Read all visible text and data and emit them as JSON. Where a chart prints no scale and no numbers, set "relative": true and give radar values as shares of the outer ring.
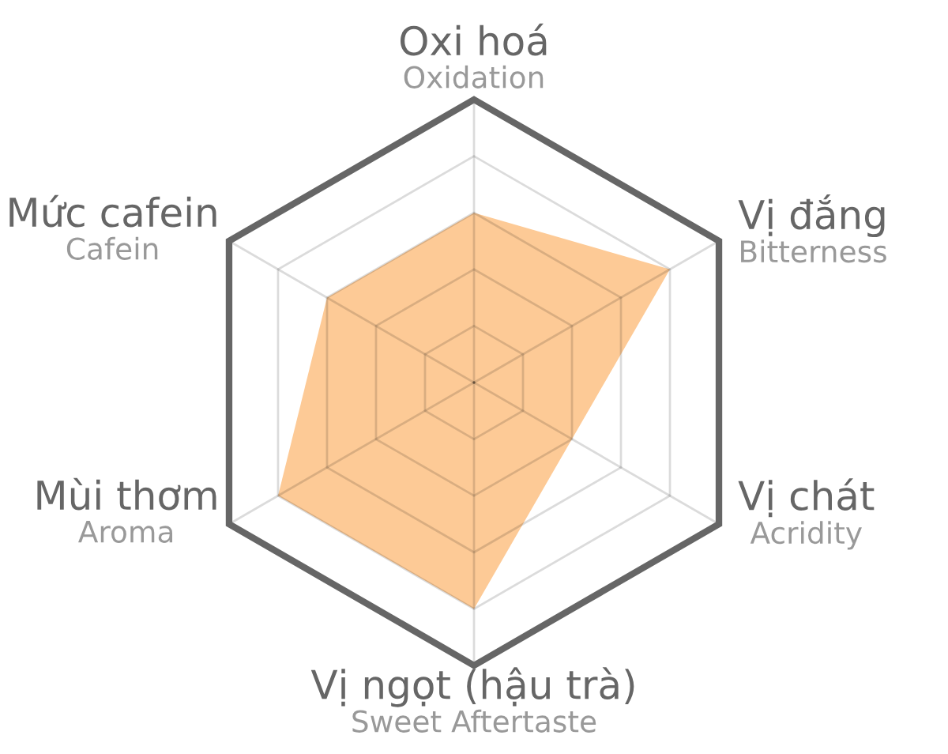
{
  "chart_data": {
    "type": "radar",
    "relative": true,
    "grid": true,
    "categories": [
      "Oxi hoá\nOxidation",
      "Vị đắng\nBitterness",
      "Vị chát\nAcridity",
      "Vị ngọt (hậu trà)\nSweet Aftertaste",
      "Mùi thơm\nAroma",
      "Mức cafein\nCafein"
    ],
    "series": [
      {
        "color": "#fdca96",
        "values": [
          0.6,
          0.8,
          0.4,
          0.8,
          0.8,
          0.6
        ]
      }
    ]
  }
}
